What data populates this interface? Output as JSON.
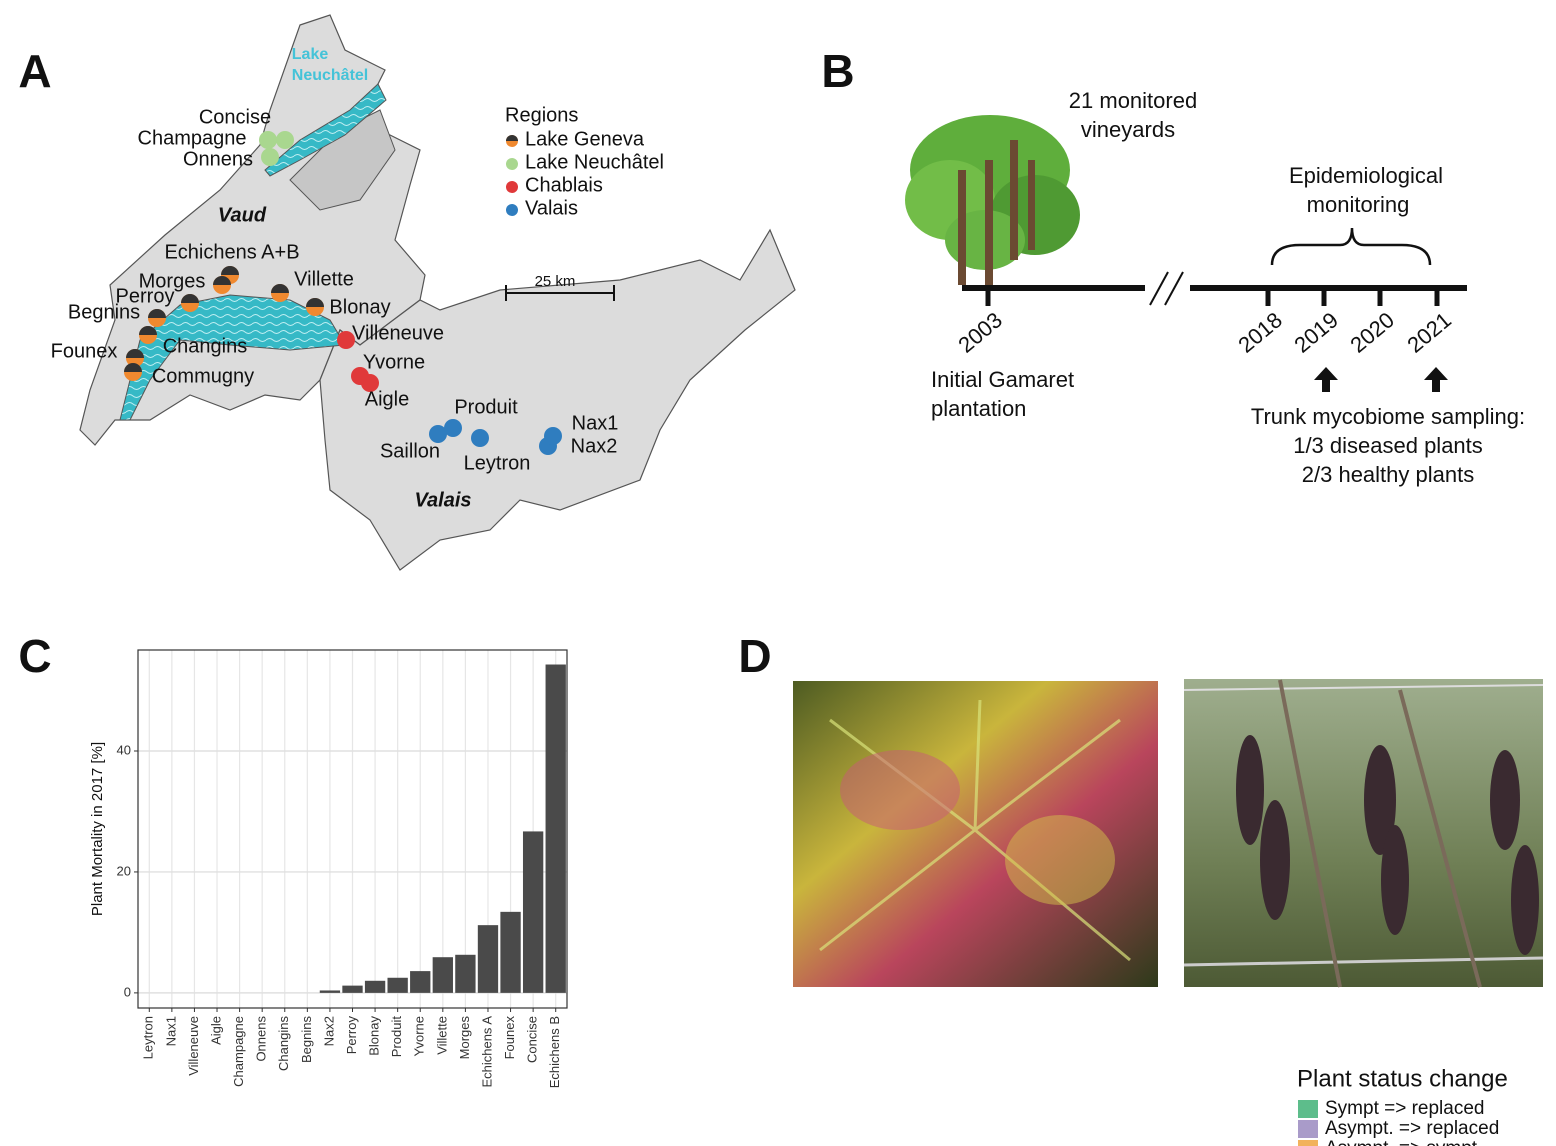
{
  "figure": {
    "panel_letters": [
      "A",
      "B",
      "C",
      "D"
    ]
  },
  "map": {
    "lake_label": [
      "Lake",
      "Neuchâtel"
    ],
    "sites": [
      "Concise",
      "Champagne",
      "Onnens",
      "Echichens A+B",
      "Morges",
      "Villette",
      "Perroy",
      "Blonay",
      "Begnins",
      "Villeneuve",
      "Changins",
      "Founex",
      "Yvorne",
      "Commugny",
      "Aigle",
      "Produit",
      "Nax1",
      "Nax2",
      "Saillon",
      "Leytron"
    ],
    "cantons": [
      "Vaud",
      "Valais"
    ],
    "legend_title": "Regions",
    "regions": [
      {
        "name": "Lake Geneva",
        "color": "#f0892f"
      },
      {
        "name": "Lake Neuchâtel",
        "color": "#a9d78f"
      },
      {
        "name": "Chablais",
        "color": "#e0393a"
      },
      {
        "name": "Valais",
        "color": "#2f7dbf"
      }
    ],
    "scale_label": "25 km"
  },
  "timeline": {
    "caption": [
      "21 monitored",
      "vineyards"
    ],
    "years": [
      "2003",
      "2018",
      "2019",
      "2020",
      "2021"
    ],
    "plantation": [
      "Initial Gamaret",
      "plantation"
    ],
    "monitoring": [
      "Epidemiological",
      "monitoring"
    ],
    "sampling": [
      "Trunk mycobiome sampling:",
      "1/3 diseased plants",
      "2/3 healthy plants"
    ]
  },
  "chart_data": {
    "type": "bar",
    "y_label": "Plant Mortality in 2017 [%]",
    "categories": [
      "Leytron",
      "Nax1",
      "Villeneuve",
      "Aigle",
      "Champagne",
      "Onnens",
      "Changins",
      "Begnins",
      "Nax2",
      "Perroy",
      "Blonay",
      "Produit",
      "Yvorne",
      "Villette",
      "Morges",
      "Echichens A",
      "Founex",
      "Concise",
      "Echichens B"
    ],
    "values": [
      0,
      0,
      0,
      0,
      0,
      0,
      0,
      0,
      0.4,
      1.2,
      2.0,
      2.5,
      3.6,
      5.9,
      6.3,
      11.2,
      13.4,
      26.7,
      54.3
    ],
    "color": "#4a4a4a",
    "ylim": [
      -2.5,
      56.7
    ],
    "yticks": [
      0,
      20,
      40
    ],
    "grid": true
  },
  "status_legend": {
    "title": "Plant status change",
    "entries": [
      {
        "name": "Sympt => replaced",
        "color": "#5dbd8b"
      },
      {
        "name": "Asympt. => replaced",
        "color": "#a99bc9"
      },
      {
        "name": "Asympt. => sympt.",
        "color": "#f2b25c"
      }
    ]
  }
}
